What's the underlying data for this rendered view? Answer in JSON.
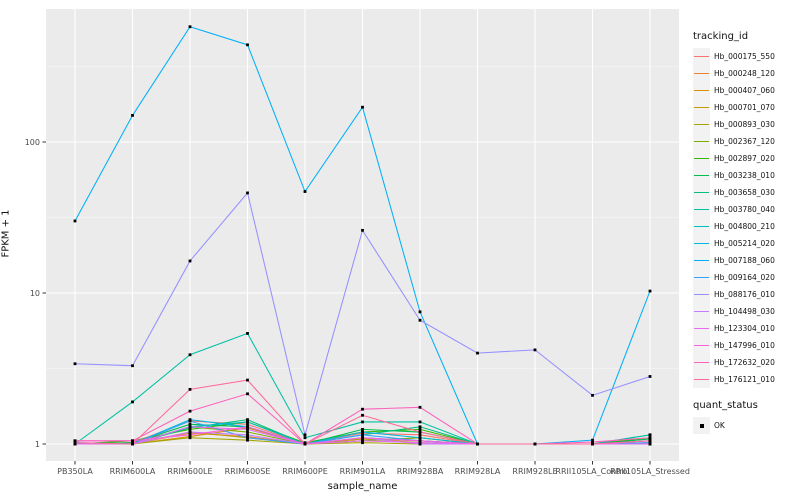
{
  "figure": {
    "background": "#FFFFFF",
    "panel_background": "#EBEBEB",
    "grid_major_color": "#FFFFFF",
    "grid_minor_color": "#FFFFFF",
    "tick_mark_color": "#333333",
    "tick_label_color": "#4D4D4D",
    "point_color": "#000000",
    "legend_key_background": "#F2F2F2"
  },
  "chart_data": {
    "type": "line",
    "title": "",
    "xlabel": "sample_name",
    "ylabel": "FPKM + 1",
    "y_scale": "log10",
    "y_ticks": [
      1,
      10,
      100
    ],
    "y_minor_ticks": [
      3.1623,
      31.623,
      316.23
    ],
    "ylim": [
      0.77,
      760
    ],
    "grid": true,
    "marker": "black-square",
    "legend_position": "right",
    "categories": [
      "PB350LA",
      "RRIM600LA",
      "RRIM600LE",
      "RRIM600SE",
      "RRIM600PE",
      "RRIM901LA",
      "RRIM928BA",
      "RRIM928LA",
      "RRIM928LE",
      "RRII105LA_Control",
      "RRII105LA_Stressed"
    ],
    "series": [
      {
        "name": "Hb_000175_550",
        "color": "#F8766D",
        "values": [
          1.0,
          1.02,
          1.42,
          1.35,
          1.0,
          1.18,
          1.15,
          1.0,
          1.0,
          1.0,
          1.02
        ]
      },
      {
        "name": "Hb_000248_120",
        "color": "#EA8331",
        "values": [
          1.0,
          1.0,
          1.18,
          1.12,
          1.0,
          1.08,
          1.05,
          1.0,
          1.0,
          1.0,
          1.0
        ]
      },
      {
        "name": "Hb_000407_060",
        "color": "#D89000",
        "values": [
          1.0,
          1.0,
          1.12,
          1.28,
          1.0,
          1.05,
          1.1,
          1.0,
          1.0,
          1.0,
          1.0
        ]
      },
      {
        "name": "Hb_000701_070",
        "color": "#C09B00",
        "values": [
          1.0,
          1.0,
          1.2,
          1.1,
          1.0,
          1.08,
          1.02,
          1.0,
          1.0,
          1.0,
          1.0
        ]
      },
      {
        "name": "Hb_000893_030",
        "color": "#A3A500",
        "values": [
          1.0,
          1.0,
          1.1,
          1.06,
          1.0,
          1.02,
          1.0,
          1.0,
          1.0,
          1.0,
          1.0
        ]
      },
      {
        "name": "Hb_002367_120",
        "color": "#7CAE00",
        "values": [
          1.0,
          1.0,
          1.3,
          1.2,
          1.0,
          1.05,
          1.1,
          1.0,
          1.0,
          1.0,
          1.0
        ]
      },
      {
        "name": "Hb_002897_020",
        "color": "#39B600",
        "values": [
          1.0,
          1.05,
          1.25,
          1.4,
          1.02,
          1.2,
          1.25,
          1.0,
          1.0,
          1.0,
          1.1
        ]
      },
      {
        "name": "Hb_003238_010",
        "color": "#00BB4E",
        "values": [
          1.0,
          1.02,
          1.35,
          1.3,
          1.0,
          1.25,
          1.2,
          1.0,
          1.0,
          1.0,
          1.08
        ]
      },
      {
        "name": "Hb_003658_030",
        "color": "#00BF7D",
        "values": [
          1.0,
          1.0,
          1.28,
          1.45,
          1.0,
          1.15,
          1.3,
          1.0,
          1.0,
          1.0,
          1.15
        ]
      },
      {
        "name": "Hb_003780_040",
        "color": "#00C1A3",
        "values": [
          1.0,
          1.9,
          3.9,
          5.4,
          1.1,
          1.4,
          1.4,
          1.0,
          1.0,
          1.0,
          1.15
        ]
      },
      {
        "name": "Hb_004800_210",
        "color": "#00BFC4",
        "values": [
          1.0,
          1.0,
          1.3,
          1.4,
          1.0,
          1.1,
          1.05,
          1.0,
          1.0,
          1.0,
          1.05
        ]
      },
      {
        "name": "Hb_005214_020",
        "color": "#00BAE0",
        "values": [
          1.02,
          1.0,
          1.45,
          1.3,
          1.0,
          1.2,
          1.1,
          1.0,
          1.0,
          1.0,
          1.0
        ]
      },
      {
        "name": "Hb_007188_060",
        "color": "#00B0F6",
        "values": [
          30,
          150,
          580,
          440,
          47,
          170,
          7.5,
          1.0,
          1.0,
          1.06,
          10.3
        ]
      },
      {
        "name": "Hb_009164_020",
        "color": "#35A2FF",
        "values": [
          1.0,
          1.0,
          1.42,
          1.1,
          1.0,
          1.15,
          1.05,
          1.0,
          1.0,
          1.0,
          1.02
        ]
      },
      {
        "name": "Hb_088176_010",
        "color": "#9590FF",
        "values": [
          3.4,
          3.3,
          16.3,
          46,
          1.15,
          26,
          6.6,
          4.0,
          4.2,
          2.1,
          2.8
        ]
      },
      {
        "name": "Hb_104498_030",
        "color": "#C77CFF",
        "values": [
          1.0,
          1.0,
          1.2,
          1.15,
          1.0,
          1.1,
          1.0,
          1.0,
          1.0,
          1.0,
          1.0
        ]
      },
      {
        "name": "Hb_123304_010",
        "color": "#E76BF3",
        "values": [
          1.0,
          1.0,
          1.3,
          1.25,
          1.0,
          1.05,
          1.02,
          1.0,
          1.0,
          1.0,
          1.0
        ]
      },
      {
        "name": "Hb_147996_010",
        "color": "#FA62DB",
        "values": [
          1.05,
          1.05,
          1.15,
          1.3,
          1.0,
          1.1,
          1.05,
          1.0,
          1.0,
          1.0,
          1.05
        ]
      },
      {
        "name": "Hb_172632_020",
        "color": "#FF62BC",
        "values": [
          1.05,
          1.05,
          1.65,
          2.15,
          1.0,
          1.7,
          1.75,
          1.0,
          1.0,
          1.03,
          1.1
        ]
      },
      {
        "name": "Hb_176121_010",
        "color": "#FF6A98",
        "values": [
          1.02,
          1.0,
          2.3,
          2.65,
          1.0,
          1.55,
          1.2,
          1.0,
          1.0,
          1.0,
          1.05
        ]
      }
    ],
    "legend": {
      "series_title": "tracking_id",
      "status_title": "quant_status",
      "status_label": "OK"
    }
  }
}
